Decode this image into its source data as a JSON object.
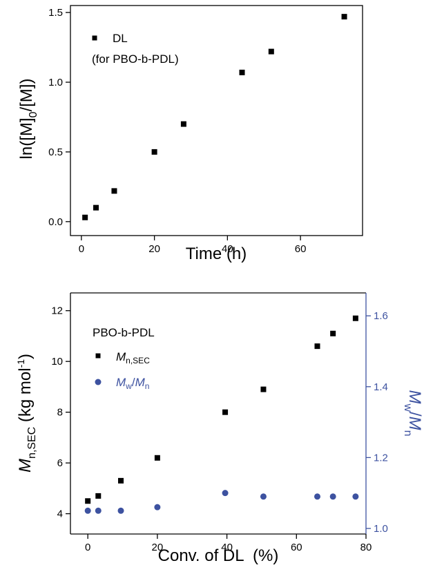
{
  "chart_data": [
    {
      "type": "scatter",
      "xlabel": "Time (h)",
      "ylabel": {
        "pre": "ln([M]",
        "sub": "0",
        "post": "/[M])"
      },
      "xlim": [
        -3,
        77
      ],
      "ylim": [
        -0.1,
        1.55
      ],
      "xticks": [
        "0",
        "20",
        "40",
        "60"
      ],
      "yticks": [
        "0.0",
        "0.5",
        "1.0",
        "1.5"
      ],
      "legend": {
        "position": "top-left",
        "series_label": "DL",
        "note": "(for PBO-b-PDL)"
      },
      "series": [
        {
          "name": "DL",
          "marker": "square",
          "color": "#000000",
          "x": [
            1,
            4,
            9,
            20,
            28,
            44,
            52,
            72
          ],
          "y": [
            0.03,
            0.1,
            0.22,
            0.5,
            0.7,
            1.07,
            1.22,
            1.47
          ]
        }
      ]
    },
    {
      "type": "scatter",
      "xlabel": "Conv. of DL  (%)",
      "ylabel_left": {
        "var": "M",
        "sub": "n,SEC",
        "unit_pre": " (kg mol",
        "unit_sup": "-1",
        "unit_post": ")"
      },
      "ylabel_right": {
        "var": "M",
        "sub": "w",
        "slash": "/",
        "var2": "M",
        "sub2": "n"
      },
      "xlim": [
        -5,
        80
      ],
      "ylim_left": [
        3.2,
        12.7
      ],
      "ylim_right": [
        0.9843,
        1.6647
      ],
      "xticks": [
        "0",
        "20",
        "40",
        "60",
        "80"
      ],
      "yticks_left": [
        "4",
        "6",
        "8",
        "10",
        "12"
      ],
      "yticks_right": [
        "1.0",
        "1.2",
        "1.4",
        "1.6"
      ],
      "legend": {
        "position": "top-left",
        "title": "PBO-b-PDL"
      },
      "series": [
        {
          "name": "Mn,SEC",
          "axis": "left",
          "marker": "square",
          "color": "#000000",
          "x": [
            0,
            3,
            9.5,
            20,
            39.5,
            50.5,
            66,
            70.5,
            77
          ],
          "y": [
            4.5,
            4.7,
            5.3,
            6.2,
            8.0,
            8.9,
            10.6,
            11.1,
            11.7
          ]
        },
        {
          "name": "Mw/Mn",
          "axis": "right",
          "marker": "circle",
          "color": "#3d52a0",
          "x": [
            0,
            3,
            9.5,
            20,
            39.5,
            50.5,
            66,
            70.5,
            77
          ],
          "y": [
            1.05,
            1.05,
            1.05,
            1.06,
            1.1,
            1.09,
            1.09,
            1.09,
            1.09
          ]
        }
      ]
    }
  ]
}
